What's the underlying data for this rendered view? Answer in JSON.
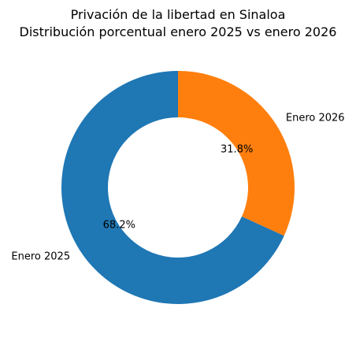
{
  "chart_data": {
    "type": "pie",
    "donut": true,
    "title": "Privación de la libertad en Sinaloa",
    "subtitle": "Distribución porcentual enero 2025 vs enero 2026",
    "slices": [
      {
        "label": "Enero 2026",
        "value": 31.8,
        "display": "31.8%",
        "color": "#ff7f0e"
      },
      {
        "label": "Enero 2025",
        "value": 68.2,
        "display": "68.2%",
        "color": "#1f77b4"
      }
    ],
    "start": "top",
    "direction": "clockwise",
    "legend": "none"
  }
}
